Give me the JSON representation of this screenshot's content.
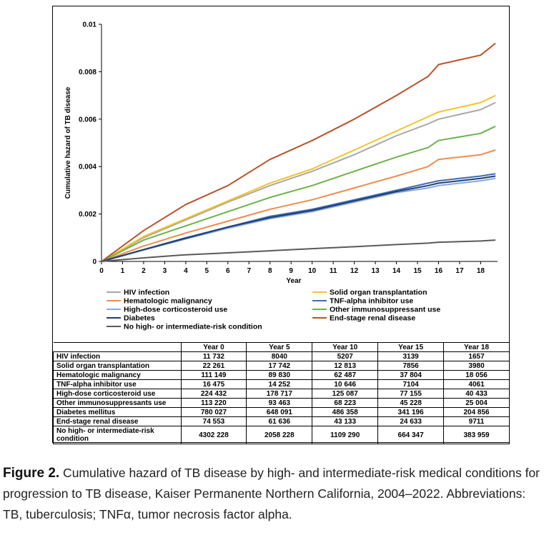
{
  "chart_data": {
    "type": "line",
    "xlabel": "Year",
    "ylabel": "Cumulative hazard of TB disease",
    "xlim": [
      0,
      18.8
    ],
    "ylim": [
      0,
      0.01
    ],
    "x_ticks": [
      "0",
      "1",
      "2",
      "3",
      "4",
      "5",
      "6",
      "7",
      "8",
      "9",
      "10",
      "11",
      "12",
      "13",
      "14",
      "15",
      "16",
      "17",
      "18"
    ],
    "y_ticks": [
      "0",
      "0.002",
      "0.004",
      "0.006",
      "0.008",
      "0.01"
    ],
    "grid": false,
    "legend_position": "bottom",
    "x": [
      0,
      2,
      4,
      6,
      8,
      10,
      12,
      14,
      15.5,
      16,
      18,
      18.7
    ],
    "series": [
      {
        "name": "HIV infection",
        "color": "#a8a8a8",
        "values": [
          0,
          0.001,
          0.00175,
          0.0025,
          0.0032,
          0.0038,
          0.0045,
          0.0053,
          0.0058,
          0.006,
          0.0064,
          0.0067
        ]
      },
      {
        "name": "Solid organ transplantation",
        "color": "#f2c32a",
        "values": [
          0,
          0.00105,
          0.0018,
          0.00255,
          0.0033,
          0.0039,
          0.0047,
          0.0055,
          0.0061,
          0.0063,
          0.0067,
          0.007
        ]
      },
      {
        "name": "Hematologic malignancy",
        "color": "#ef8c4f",
        "values": [
          0,
          0.00065,
          0.0012,
          0.0017,
          0.0022,
          0.0026,
          0.0031,
          0.0036,
          0.004,
          0.0043,
          0.0045,
          0.0047
        ]
      },
      {
        "name": "TNF-alpha inhibitor use",
        "color": "#3f6bb5",
        "values": [
          0,
          0.0005,
          0.001,
          0.00145,
          0.0019,
          0.0022,
          0.0026,
          0.003,
          0.0033,
          0.0034,
          0.0036,
          0.0037
        ]
      },
      {
        "name": "High-dose corticosteroid use",
        "color": "#86a8de",
        "values": [
          0,
          0.00048,
          0.00095,
          0.0014,
          0.0018,
          0.0021,
          0.0025,
          0.0029,
          0.0031,
          0.0032,
          0.0034,
          0.0035
        ]
      },
      {
        "name": "Other immunosuppressant use",
        "color": "#6bb34a",
        "values": [
          0,
          0.0009,
          0.0015,
          0.0021,
          0.0027,
          0.0032,
          0.0038,
          0.0044,
          0.0048,
          0.0051,
          0.0054,
          0.0057
        ]
      },
      {
        "name": "Diabetes",
        "color": "#1f3e73",
        "values": [
          0,
          0.0005,
          0.00098,
          0.00145,
          0.00185,
          0.00215,
          0.00255,
          0.00295,
          0.0032,
          0.0033,
          0.0035,
          0.0036
        ]
      },
      {
        "name": "End-stage renal disease",
        "color": "#b8532b",
        "values": [
          0,
          0.0013,
          0.0024,
          0.0032,
          0.0043,
          0.0051,
          0.006,
          0.007,
          0.0078,
          0.0083,
          0.0087,
          0.0092
        ]
      },
      {
        "name": "No high- or intermediate-risk condition",
        "color": "#5a5a5a",
        "values": [
          0,
          0.00015,
          0.00028,
          0.00036,
          0.00045,
          0.00054,
          0.00062,
          0.00071,
          0.00077,
          0.00081,
          0.00086,
          0.0009
        ]
      }
    ],
    "legend": {
      "left_column": [
        "HIV infection",
        "Hematologic malignancy",
        "High-dose corticosteroid use",
        "Diabetes",
        "No high- or intermediate-risk condition"
      ],
      "right_column": [
        "Solid organ transplantation",
        "TNF-alpha inhibitor use",
        "Other immunosuppressant use",
        "End-stage renal disease"
      ]
    }
  },
  "table": {
    "headers": [
      "",
      "Year 0",
      "Year 5",
      "Year 10",
      "Year 15",
      "Year 18"
    ],
    "rows": [
      {
        "label": "HIV infection",
        "values": [
          "11 732",
          "8040",
          "5207",
          "3139",
          "1657"
        ]
      },
      {
        "label": "Solid organ transplantation",
        "values": [
          "22 261",
          "17 742",
          "12 813",
          "7856",
          "3980"
        ]
      },
      {
        "label": "Hematologic malignancy",
        "values": [
          "111 149",
          "89 830",
          "62 487",
          "37 804",
          "18 056"
        ]
      },
      {
        "label": "TNF-alpha inhibitor use",
        "values": [
          "16 475",
          "14 252",
          "10 646",
          "7104",
          "4061"
        ]
      },
      {
        "label": "High-dose corticosteroid use",
        "values": [
          "224 432",
          "178 717",
          "125 087",
          "77 155",
          "40 433"
        ]
      },
      {
        "label": "Other immunosuppressants use",
        "values": [
          "113 220",
          "93 463",
          "68 223",
          "45 228",
          "25 004"
        ]
      },
      {
        "label": "Diabetes mellitus",
        "values": [
          "780 027",
          "648 091",
          "486 358",
          "341 196",
          "204 856"
        ]
      },
      {
        "label": "End-stage renal disease",
        "values": [
          "74 553",
          "61 636",
          "43 133",
          "24 633",
          "9711"
        ]
      },
      {
        "label": "No high- or intermediate-risk condition",
        "values": [
          "4302 228",
          "2058 228",
          "1109 290",
          "664 347",
          "383 959"
        ]
      }
    ]
  },
  "caption": {
    "label": "Figure 2.",
    "text": " Cumulative hazard of TB disease by high- and intermediate-risk medical conditions for progression to TB disease, Kaiser Permanente Northern California, 2004–2022. Abbreviations: TB, tuberculosis; TNFα, tumor necrosis factor alpha."
  }
}
